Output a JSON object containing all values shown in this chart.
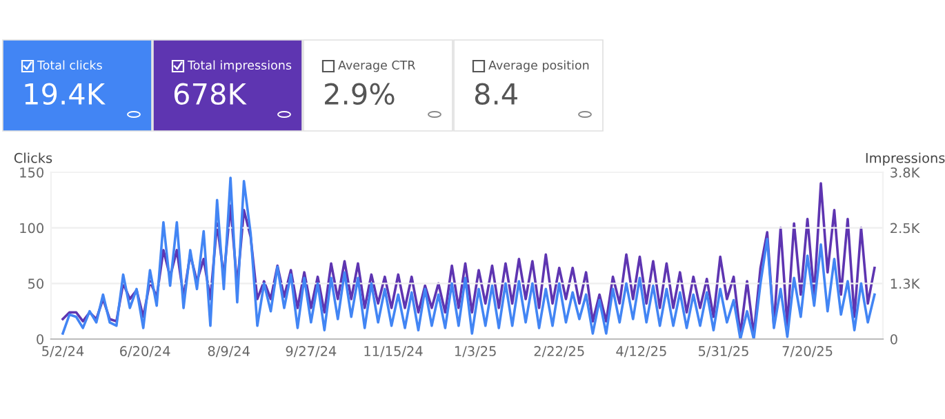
{
  "chart_data": {
    "type": "line",
    "ylabel": "Clicks",
    "y2label": "Impressions",
    "annotations": [
      "Total clicks",
      "19.4K",
      "Total impressions",
      "678K",
      "Average CTR",
      "2.9%",
      "Average position",
      "8.4"
    ],
    "x": [
      "2024-05-02",
      "2024-05-06",
      "2024-05-10",
      "2024-05-14",
      "2024-05-18",
      "2024-05-22",
      "2024-05-26",
      "2024-05-30",
      "2024-06-03",
      "2024-06-07",
      "2024-06-11",
      "2024-06-15",
      "2024-06-19",
      "2024-06-23",
      "2024-06-27",
      "2024-07-01",
      "2024-07-05",
      "2024-07-09",
      "2024-07-13",
      "2024-07-17",
      "2024-07-21",
      "2024-07-25",
      "2024-07-29",
      "2024-08-02",
      "2024-08-06",
      "2024-08-10",
      "2024-08-14",
      "2024-08-18",
      "2024-08-22",
      "2024-08-26",
      "2024-08-30",
      "2024-09-03",
      "2024-09-07",
      "2024-09-11",
      "2024-09-15",
      "2024-09-19",
      "2024-09-23",
      "2024-09-27",
      "2024-10-01",
      "2024-10-05",
      "2024-10-09",
      "2024-10-13",
      "2024-10-17",
      "2024-10-21",
      "2024-10-25",
      "2024-10-29",
      "2024-11-02",
      "2024-11-06",
      "2024-11-10",
      "2024-11-14",
      "2024-11-18",
      "2024-11-22",
      "2024-11-26",
      "2024-11-30",
      "2024-12-04",
      "2024-12-08",
      "2024-12-12",
      "2024-12-16",
      "2024-12-20",
      "2024-12-24",
      "2024-12-28",
      "2025-01-01",
      "2025-01-05",
      "2025-01-09",
      "2025-01-13",
      "2025-01-17",
      "2025-01-21",
      "2025-01-25",
      "2025-01-29",
      "2025-02-02",
      "2025-02-06",
      "2025-02-10",
      "2025-02-14",
      "2025-02-18",
      "2025-02-22",
      "2025-02-26",
      "2025-03-02",
      "2025-03-06",
      "2025-03-10",
      "2025-03-14",
      "2025-03-18",
      "2025-03-22",
      "2025-03-26",
      "2025-03-30",
      "2025-04-03",
      "2025-04-07",
      "2025-04-11",
      "2025-04-15",
      "2025-04-19",
      "2025-04-23",
      "2025-04-27",
      "2025-05-01",
      "2025-05-05",
      "2025-05-09",
      "2025-05-13",
      "2025-05-17",
      "2025-05-21",
      "2025-05-25",
      "2025-05-29",
      "2025-06-02",
      "2025-06-06",
      "2025-06-10",
      "2025-06-14",
      "2025-06-18",
      "2025-06-22",
      "2025-06-26",
      "2025-06-30",
      "2025-07-04",
      "2025-07-08",
      "2025-07-12",
      "2025-07-16",
      "2025-07-20",
      "2025-07-24",
      "2025-07-28",
      "2025-08-01",
      "2025-08-05",
      "2025-08-09",
      "2025-08-13",
      "2025-08-17",
      "2025-08-21",
      "2025-08-25",
      "2025-08-29"
    ],
    "series": [
      {
        "color": "#5e35b1",
        "axis": "y2",
        "values": [
          450,
          600,
          600,
          400,
          600,
          450,
          900,
          450,
          400,
          1250,
          900,
          1100,
          500,
          1300,
          950,
          2000,
          1400,
          2000,
          950,
          1900,
          1300,
          1800,
          900,
          2600,
          1400,
          3000,
          1200,
          2900,
          2300,
          900,
          1300,
          900,
          1650,
          950,
          1550,
          700,
          1500,
          700,
          1400,
          600,
          1700,
          900,
          1750,
          900,
          1700,
          700,
          1450,
          800,
          1400,
          700,
          1450,
          700,
          1400,
          600,
          1200,
          700,
          1250,
          600,
          1650,
          700,
          1700,
          600,
          1550,
          800,
          1650,
          700,
          1700,
          800,
          1800,
          900,
          1750,
          700,
          1900,
          800,
          1600,
          900,
          1600,
          800,
          1500,
          400,
          1000,
          400,
          1400,
          800,
          1900,
          900,
          1850,
          800,
          1750,
          700,
          1700,
          700,
          1500,
          600,
          1400,
          700,
          1350,
          500,
          1850,
          900,
          1400,
          100,
          1300,
          100,
          1600,
          2400,
          300,
          2500,
          300,
          2600,
          1000,
          2700,
          1000,
          3500,
          1500,
          2900,
          1000,
          2700,
          500,
          2500,
          800,
          1600
        ]
      },
      {
        "color": "#4285f4",
        "values": [
          5,
          22,
          20,
          10,
          25,
          15,
          40,
          15,
          12,
          58,
          28,
          45,
          10,
          62,
          30,
          105,
          48,
          105,
          28,
          80,
          45,
          97,
          12,
          125,
          45,
          145,
          33,
          142,
          95,
          12,
          50,
          25,
          65,
          28,
          58,
          10,
          55,
          15,
          50,
          8,
          55,
          18,
          60,
          20,
          55,
          10,
          50,
          15,
          45,
          12,
          40,
          10,
          42,
          8,
          45,
          12,
          40,
          10,
          50,
          12,
          55,
          5,
          45,
          12,
          48,
          10,
          50,
          12,
          52,
          15,
          50,
          10,
          45,
          12,
          50,
          15,
          42,
          18,
          40,
          5,
          35,
          5,
          45,
          15,
          50,
          18,
          55,
          15,
          48,
          12,
          45,
          12,
          42,
          10,
          40,
          12,
          42,
          8,
          45,
          15,
          35,
          0,
          25,
          0,
          50,
          90,
          10,
          45,
          2,
          55,
          20,
          75,
          30,
          85,
          25,
          72,
          22,
          52,
          8,
          50,
          15,
          40
        ]
      }
    ],
    "xlim": [
      "2024-04-25",
      "2025-09-03"
    ],
    "xticks": [
      {
        "value": "2024-05-02",
        "label": "5/2/24"
      },
      {
        "value": "2024-06-20",
        "label": "6/20/24"
      },
      {
        "value": "2024-08-09",
        "label": "8/9/24"
      },
      {
        "value": "2024-09-27",
        "label": "9/27/24"
      },
      {
        "value": "2024-11-15",
        "label": "11/15/24"
      },
      {
        "value": "2025-01-03",
        "label": "1/3/25"
      },
      {
        "value": "2025-02-22",
        "label": "2/22/25"
      },
      {
        "value": "2025-04-12",
        "label": "4/12/25"
      },
      {
        "value": "2025-05-31",
        "label": "5/31/25"
      },
      {
        "value": "2025-07-20",
        "label": "7/20/25"
      }
    ],
    "ylim": [
      0,
      150
    ],
    "yticks": [
      0,
      50,
      100,
      150
    ],
    "y2lim": [
      0,
      3750
    ],
    "y2ticks": [
      0,
      {
        "value": 1250,
        "label": "1.3K"
      },
      {
        "value": 2500,
        "label": "2.5K"
      },
      {
        "value": 3750,
        "label": "3.8K"
      }
    ],
    "grid": "y",
    "marker": "none",
    "line_style": "solid"
  }
}
